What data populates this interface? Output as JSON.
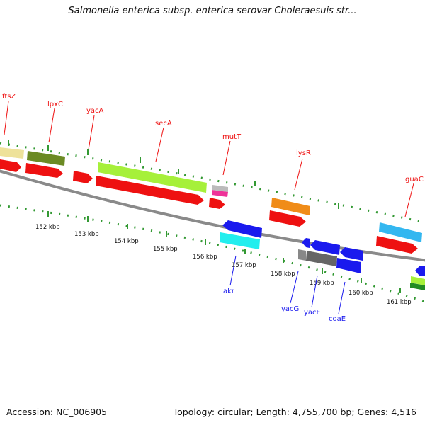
{
  "title": "Salmonella enterica subsp. enterica serovar Choleraesuis str...",
  "footer": {
    "accession": "Accession: NC_006905",
    "stats": "Topology: circular; Length: 4,755,700 bp; Genes: 4,516"
  },
  "colors": {
    "red": "#ee1111",
    "blue": "#1a1aee",
    "backbone": "#8a8a8a",
    "ticks": "#339933"
  },
  "ticks": [
    {
      "label": "152 kbp"
    },
    {
      "label": "153 kbp"
    },
    {
      "label": "154 kbp"
    },
    {
      "label": "155 kbp"
    },
    {
      "label": "156 kbp"
    },
    {
      "label": "157 kbp"
    },
    {
      "label": "158 kbp"
    },
    {
      "label": "159 kbp"
    },
    {
      "label": "160 kbp"
    },
    {
      "label": "161 kbp"
    }
  ],
  "gene_labels_top": [
    {
      "name": "ftsZ"
    },
    {
      "name": "lpxC"
    },
    {
      "name": "yacA"
    },
    {
      "name": "secA"
    },
    {
      "name": "mutT"
    },
    {
      "name": "lysR"
    },
    {
      "name": "guaC"
    }
  ],
  "gene_labels_bottom": [
    {
      "name": "akr"
    },
    {
      "name": "yacG"
    },
    {
      "name": "yacF"
    },
    {
      "name": "coaE"
    }
  ]
}
